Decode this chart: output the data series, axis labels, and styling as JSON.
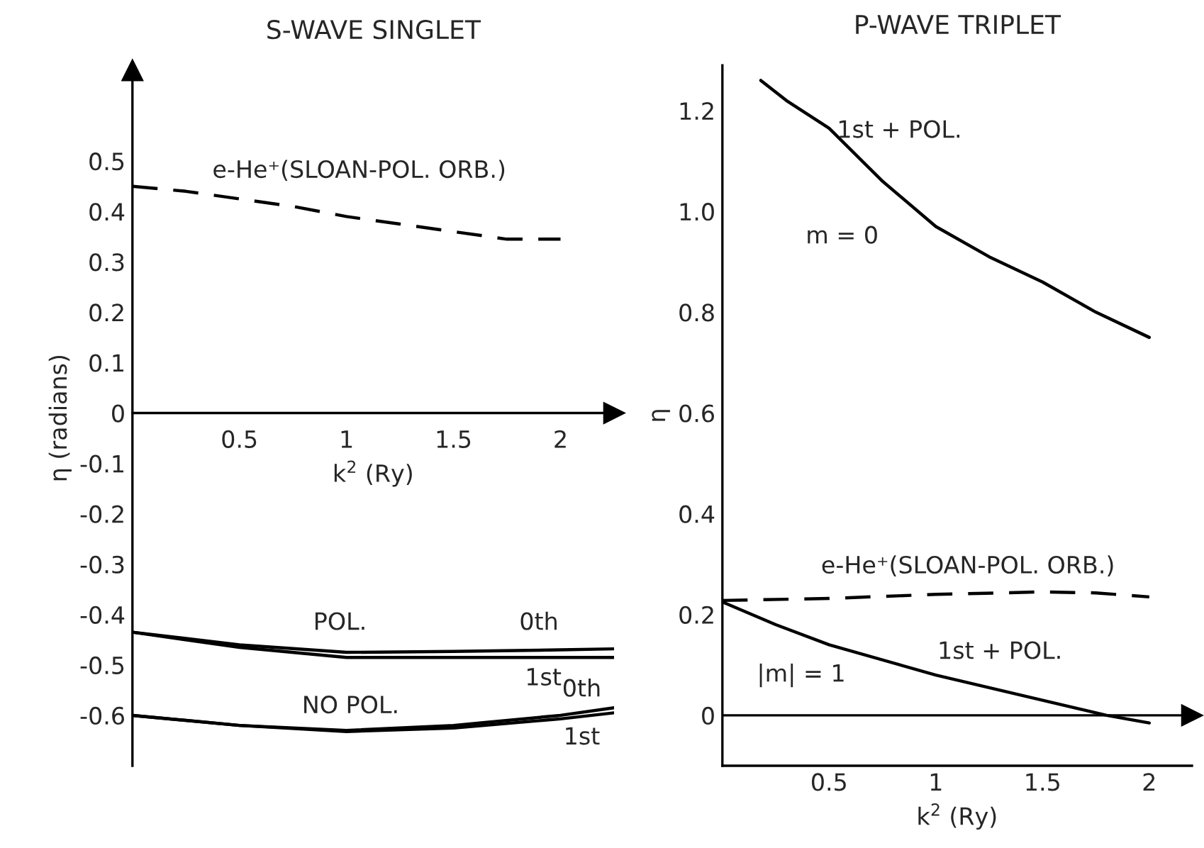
{
  "chart_data": [
    {
      "type": "line",
      "title": "S-WAVE SINGLET",
      "xlabel": "k$^{2}$ (Ry)",
      "ylabel": "η (radians)",
      "xlim": [
        0,
        2.25
      ],
      "ylim": [
        -0.7,
        0.68
      ],
      "xticks": [
        0.5,
        1,
        1.5,
        2
      ],
      "yticks": [
        -0.6,
        -0.5,
        -0.4,
        -0.3,
        -0.2,
        -0.1,
        0,
        0.1,
        0.2,
        0.3,
        0.4,
        0.5
      ],
      "grid": false,
      "series": [
        {
          "color": "#000000",
          "line_style": "dashed",
          "x": [
            0,
            0.25,
            0.5,
            0.75,
            1.0,
            1.25,
            1.5,
            1.75,
            2.0
          ],
          "values": [
            0.45,
            0.44,
            0.425,
            0.41,
            0.39,
            0.375,
            0.36,
            0.345,
            0.345
          ]
        },
        {
          "color": "#000000",
          "line_style": "solid",
          "x": [
            0,
            0.5,
            1.0,
            1.5,
            2.0,
            2.25
          ],
          "values": [
            -0.435,
            -0.46,
            -0.475,
            -0.473,
            -0.47,
            -0.468
          ]
        },
        {
          "color": "#000000",
          "line_style": "solid",
          "x": [
            0,
            0.5,
            1.0,
            1.5,
            2.0,
            2.25
          ],
          "values": [
            -0.435,
            -0.465,
            -0.485,
            -0.485,
            -0.485,
            -0.485
          ]
        },
        {
          "color": "#000000",
          "line_style": "solid",
          "x": [
            0,
            0.5,
            1.0,
            1.5,
            2.0,
            2.25
          ],
          "values": [
            -0.6,
            -0.62,
            -0.63,
            -0.62,
            -0.6,
            -0.585
          ]
        },
        {
          "color": "#000000",
          "line_style": "solid",
          "x": [
            0,
            0.5,
            1.0,
            1.5,
            2.0,
            2.25
          ],
          "values": [
            -0.6,
            -0.62,
            -0.632,
            -0.625,
            -0.607,
            -0.595
          ]
        }
      ],
      "annotations": [
        "e-He⁺(SLOAN-POL. ORB.)",
        "POL.",
        "0th",
        "1st",
        "NO POL.",
        "0th",
        "1st"
      ]
    },
    {
      "type": "line",
      "title": "P-WAVE TRIPLET",
      "xlabel": "k$^{2}$ (Ry)",
      "ylabel": "η",
      "xlim": [
        0,
        2.2
      ],
      "ylim": [
        -0.1,
        1.29
      ],
      "xticks": [
        0.5,
        1,
        1.5,
        2
      ],
      "yticks": [
        0,
        {
          "value": 0.2,
          "label": "0.2"
        },
        {
          "value": 0.4,
          "label": "0.4"
        },
        {
          "value": 0.6,
          "label": "0.6"
        },
        {
          "value": 0.8,
          "label": "0.8"
        },
        {
          "value": 1.0,
          "label": "1.0"
        },
        {
          "value": 1.2,
          "label": "1.2"
        }
      ],
      "grid": false,
      "ref_lines": [
        {
          "axis": "y",
          "value": 0,
          "color": "#000000",
          "line_style": "solid"
        }
      ],
      "series": [
        {
          "color": "#000000",
          "line_style": "solid",
          "x": [
            0.18,
            0.3,
            0.5,
            0.75,
            1.0,
            1.25,
            1.5,
            1.75,
            2.0
          ],
          "values": [
            1.26,
            1.22,
            1.165,
            1.06,
            0.97,
            0.91,
            0.86,
            0.8,
            0.75
          ]
        },
        {
          "color": "#000000",
          "line_style": "dashed",
          "x": [
            0,
            0.5,
            1.0,
            1.5,
            1.75,
            2.0
          ],
          "values": [
            0.228,
            0.232,
            0.24,
            0.245,
            0.243,
            0.235
          ]
        },
        {
          "color": "#000000",
          "line_style": "solid",
          "x": [
            0,
            0.25,
            0.5,
            1.0,
            1.5,
            1.8,
            2.0
          ],
          "values": [
            0.225,
            0.18,
            0.14,
            0.08,
            0.03,
            0.0,
            -0.015
          ]
        }
      ],
      "annotations": [
        "1st + POL.",
        "m = 0",
        "e-He⁺(SLOAN-POL. ORB.)",
        "1st + POL.",
        "|m| = 1"
      ]
    }
  ]
}
